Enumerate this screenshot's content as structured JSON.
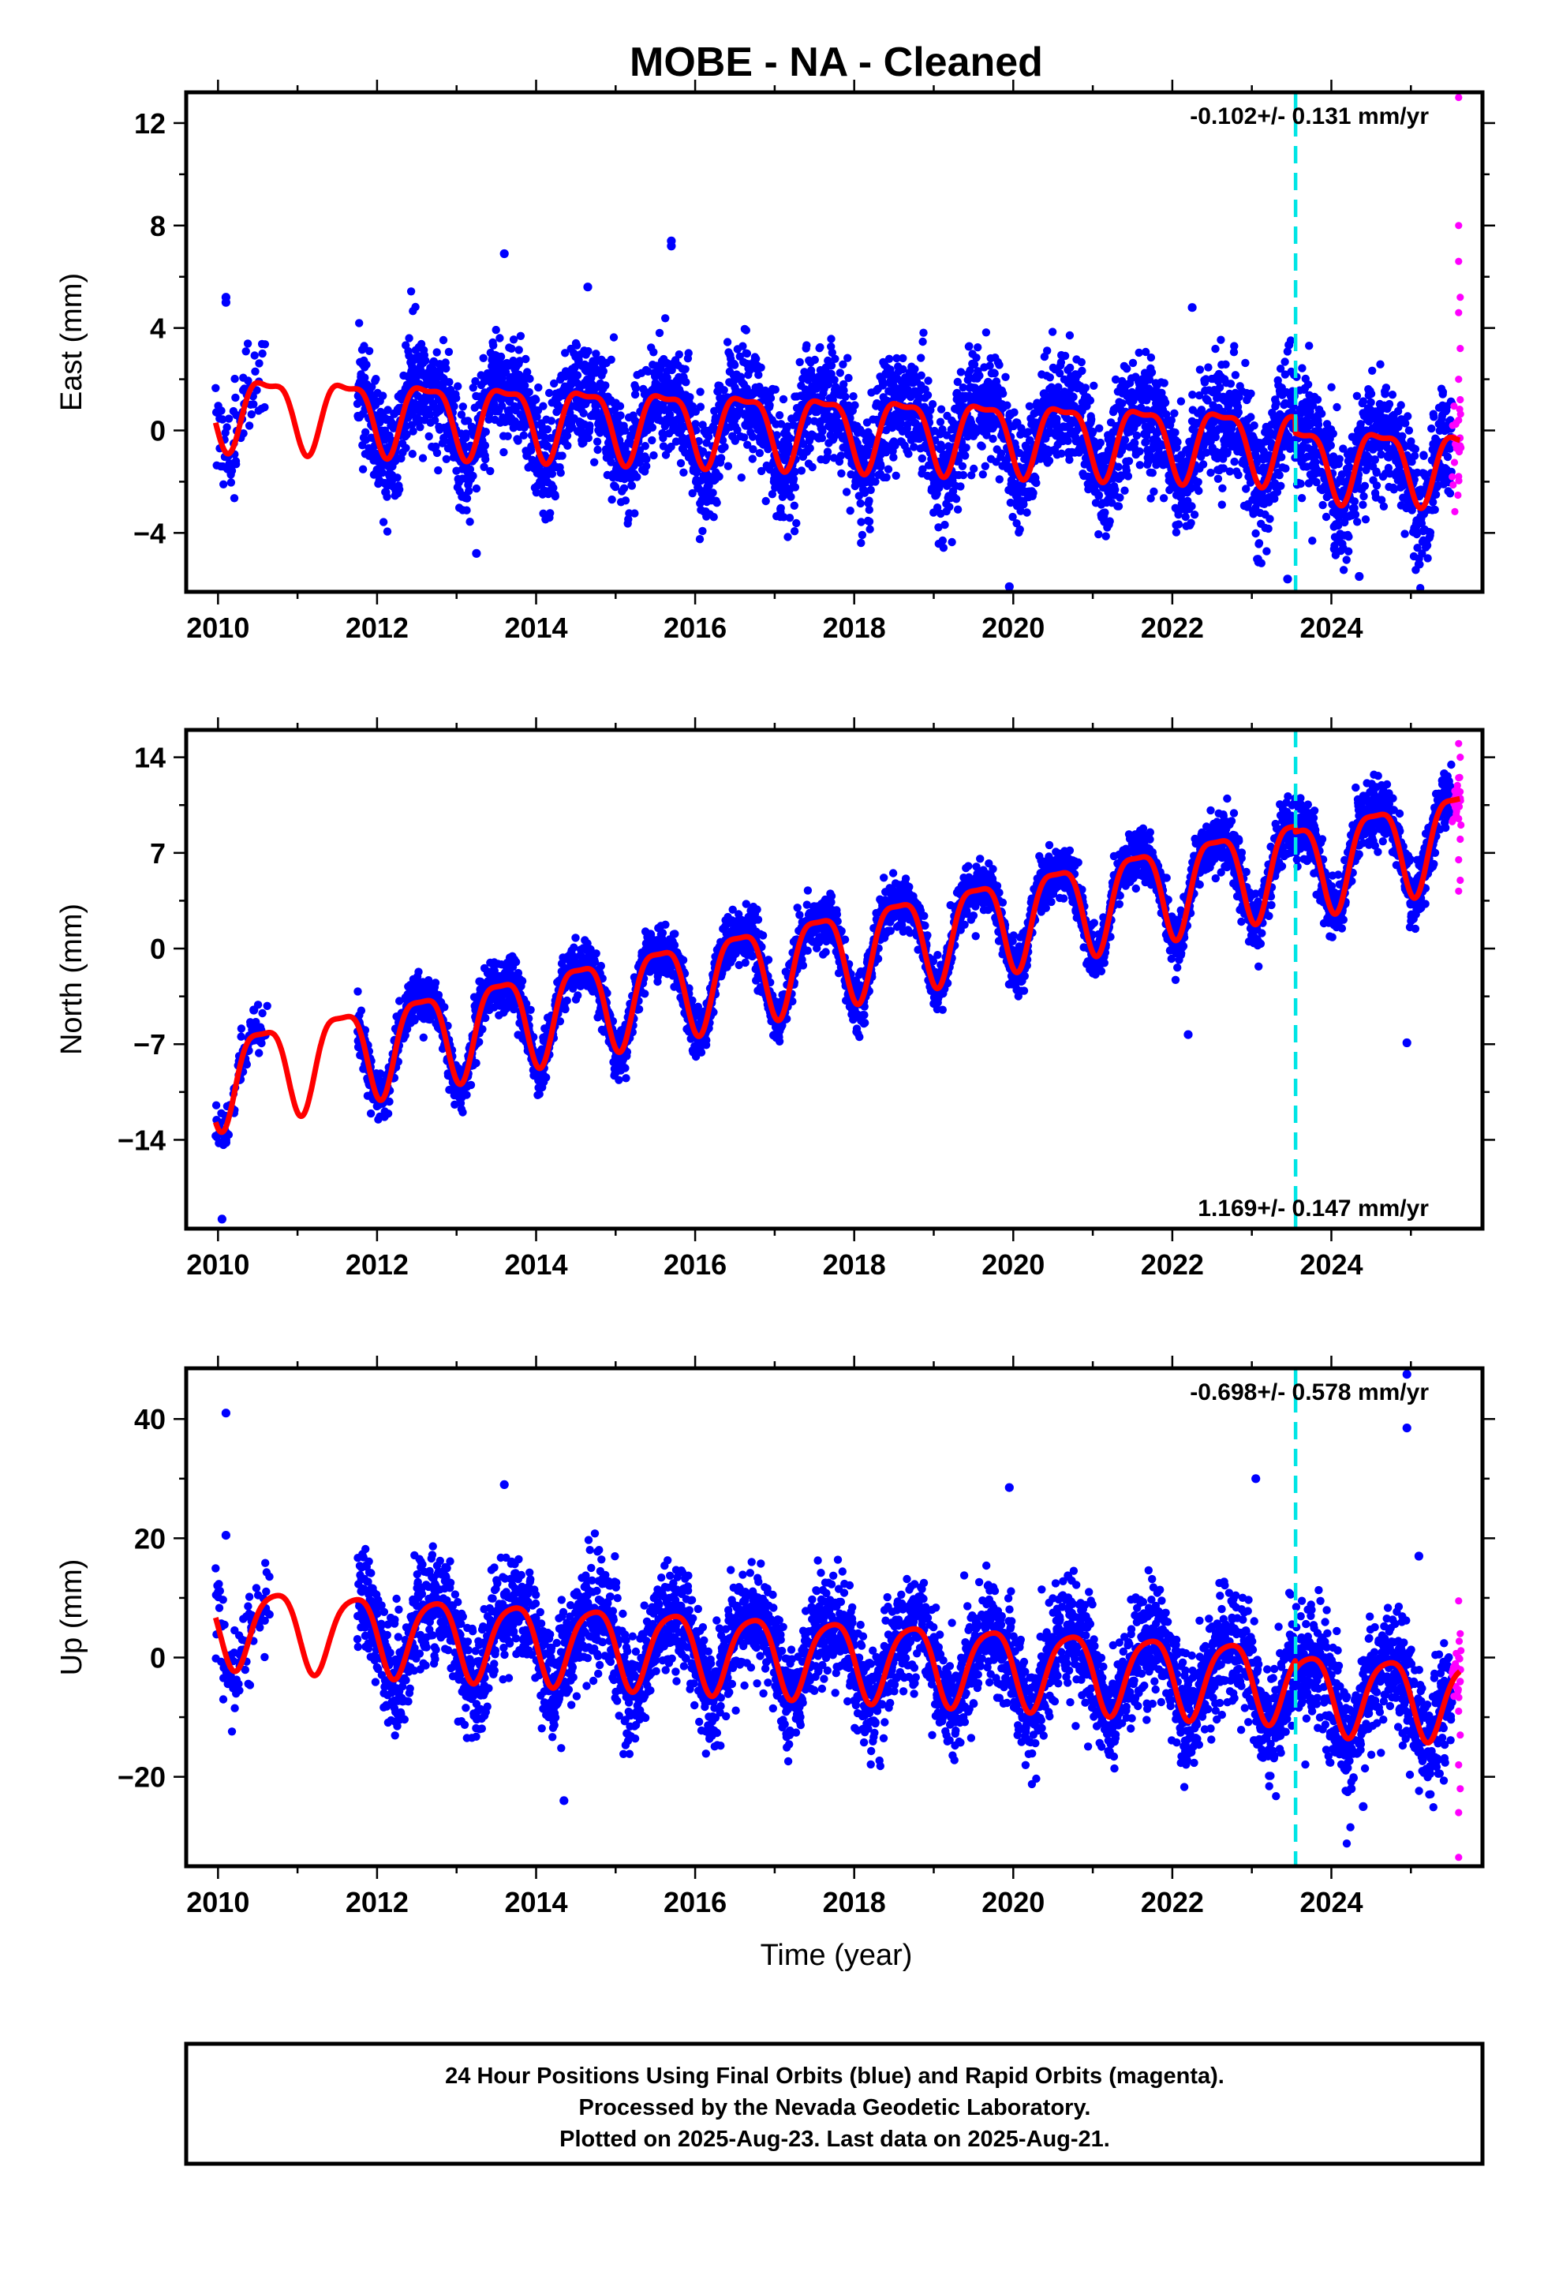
{
  "title": "MOBE  - NA - Cleaned",
  "xlabel": "Time (year)",
  "footer": {
    "line1": "24 Hour Positions Using Final Orbits (blue) and Rapid Orbits (magenta).",
    "line2": "Processed by the Nevada Geodetic Laboratory.",
    "line3": "Plotted on 2025-Aug-23. Last data on 2025-Aug-21."
  },
  "colors": {
    "final_orbits": "#0000ff",
    "rapid_orbits": "#ff00ff",
    "model": "#ff0000",
    "event_line": "#00e5e5",
    "frame": "#000000"
  },
  "chart_data": [
    {
      "id": "east",
      "type": "scatter",
      "ylabel": "East (mm)",
      "rate": "-0.102+/- 0.131 mm/yr",
      "rate_position": "top-right",
      "xlim": [
        2009.6,
        2025.9
      ],
      "ylim": [
        -6.3,
        13.2
      ],
      "xticks": [
        2010,
        2012,
        2014,
        2016,
        2018,
        2020,
        2022,
        2024
      ],
      "yticks": [
        -4,
        0,
        4,
        8,
        12
      ],
      "event_line_x": 2023.55,
      "model": {
        "offset": 0.9,
        "trend": -0.102,
        "t0": 2010.0,
        "annual_amp": 1.35,
        "annual_phase": 2010.62,
        "semi_amp": 0.45,
        "semi_phase": 2010.38,
        "step_x": 2023.55,
        "step": -0.6,
        "post_scale": 1.1
      },
      "scatter": {
        "gap": [
          2010.65,
          2011.75
        ],
        "sparse_end": 2010.55,
        "noise": 1.05,
        "rapid_start": 2025.52,
        "rapid_noise": 2.6,
        "seed": 11
      },
      "outliers": [
        [
          2010.1,
          5.2
        ],
        [
          2010.1,
          5.0
        ],
        [
          2013.6,
          6.9
        ],
        [
          2014.65,
          5.6
        ],
        [
          2015.7,
          7.4
        ],
        [
          2015.7,
          7.2
        ],
        [
          2022.25,
          4.8
        ],
        [
          2013.25,
          -4.8
        ],
        [
          2019.95,
          -6.1
        ],
        [
          2023.45,
          -5.8
        ],
        [
          2024.35,
          -5.7
        ]
      ],
      "rapid_points": [
        [
          2025.6,
          13.0
        ],
        [
          2025.6,
          8.0
        ],
        [
          2025.6,
          6.6
        ],
        [
          2025.62,
          5.2
        ],
        [
          2025.6,
          4.6
        ],
        [
          2025.62,
          3.2
        ],
        [
          2025.6,
          2.0
        ],
        [
          2025.62,
          1.2
        ],
        [
          2025.6,
          0.4
        ],
        [
          2025.62,
          -0.6
        ],
        [
          2025.6,
          -1.8
        ]
      ]
    },
    {
      "id": "north",
      "type": "scatter",
      "ylabel": "North (mm)",
      "rate": "1.169+/- 0.147 mm/yr",
      "rate_position": "bottom-right",
      "xlim": [
        2009.6,
        2025.9
      ],
      "ylim": [
        -20.5,
        16.0
      ],
      "xticks": [
        2010,
        2012,
        2014,
        2016,
        2018,
        2020,
        2022,
        2024
      ],
      "yticks": [
        -14,
        -7,
        0,
        7,
        14
      ],
      "event_line_x": 2023.55,
      "model": {
        "offset": -9.3,
        "trend": 1.169,
        "t0": 2010.0,
        "annual_amp": 3.3,
        "annual_phase": 2010.55,
        "semi_amp": 0.9,
        "semi_phase": 2010.3,
        "step_x": 2023.55,
        "step": -0.4,
        "post_scale": 1.0
      },
      "scatter": {
        "gap": [
          2010.65,
          2011.75
        ],
        "sparse_end": 2010.55,
        "noise": 0.95,
        "rapid_start": 2025.52,
        "rapid_noise": 2.5,
        "seed": 23
      },
      "outliers": [
        [
          2010.05,
          -19.8
        ],
        [
          2010.1,
          -14.2
        ],
        [
          2010.45,
          -4.5
        ],
        [
          2022.2,
          -6.3
        ],
        [
          2024.95,
          -6.9
        ]
      ],
      "rapid_points": [
        [
          2025.6,
          15.0
        ],
        [
          2025.62,
          14.0
        ],
        [
          2025.6,
          12.5
        ],
        [
          2025.62,
          11.0
        ],
        [
          2025.6,
          9.5
        ],
        [
          2025.62,
          8.0
        ],
        [
          2025.6,
          6.5
        ],
        [
          2025.62,
          5.0
        ],
        [
          2025.6,
          4.2
        ]
      ]
    },
    {
      "id": "up",
      "type": "scatter",
      "ylabel": "Up (mm)",
      "rate": "-0.698+/- 0.578 mm/yr",
      "rate_position": "top-right",
      "xlim": [
        2009.6,
        2025.9
      ],
      "ylim": [
        -35,
        48.5
      ],
      "xticks": [
        2010,
        2012,
        2014,
        2016,
        2018,
        2020,
        2022,
        2024
      ],
      "yticks": [
        -20,
        0,
        20,
        40
      ],
      "event_line_x": 2023.55,
      "model": {
        "offset": 5.5,
        "trend": -0.698,
        "t0": 2010.0,
        "annual_amp": 6.5,
        "annual_phase": 2010.72,
        "semi_amp": 1.2,
        "semi_phase": 2010.45,
        "step_x": 2023.55,
        "step": -1.5,
        "post_scale": 1.0
      },
      "scatter": {
        "gap": [
          2010.65,
          2011.75
        ],
        "sparse_end": 2010.55,
        "noise": 4.4,
        "rapid_start": 2025.52,
        "rapid_noise": 9.0,
        "seed": 37
      },
      "outliers": [
        [
          2010.1,
          41.0
        ],
        [
          2010.1,
          20.5
        ],
        [
          2013.6,
          29.0
        ],
        [
          2014.35,
          -24.0
        ],
        [
          2019.95,
          28.5
        ],
        [
          2023.05,
          30.0
        ],
        [
          2024.95,
          47.5
        ],
        [
          2024.95,
          38.5
        ],
        [
          2025.1,
          17.0
        ],
        [
          2024.4,
          -25.0
        ],
        [
          2024.25,
          -22.0
        ]
      ],
      "rapid_points": [
        [
          2025.6,
          9.5
        ],
        [
          2025.62,
          4.0
        ],
        [
          2025.6,
          0.0
        ],
        [
          2025.62,
          -4.0
        ],
        [
          2025.6,
          -9.0
        ],
        [
          2025.62,
          -13.0
        ],
        [
          2025.6,
          -18.0
        ],
        [
          2025.62,
          -22.0
        ],
        [
          2025.6,
          -26.0
        ],
        [
          2025.6,
          -33.5
        ]
      ]
    }
  ]
}
